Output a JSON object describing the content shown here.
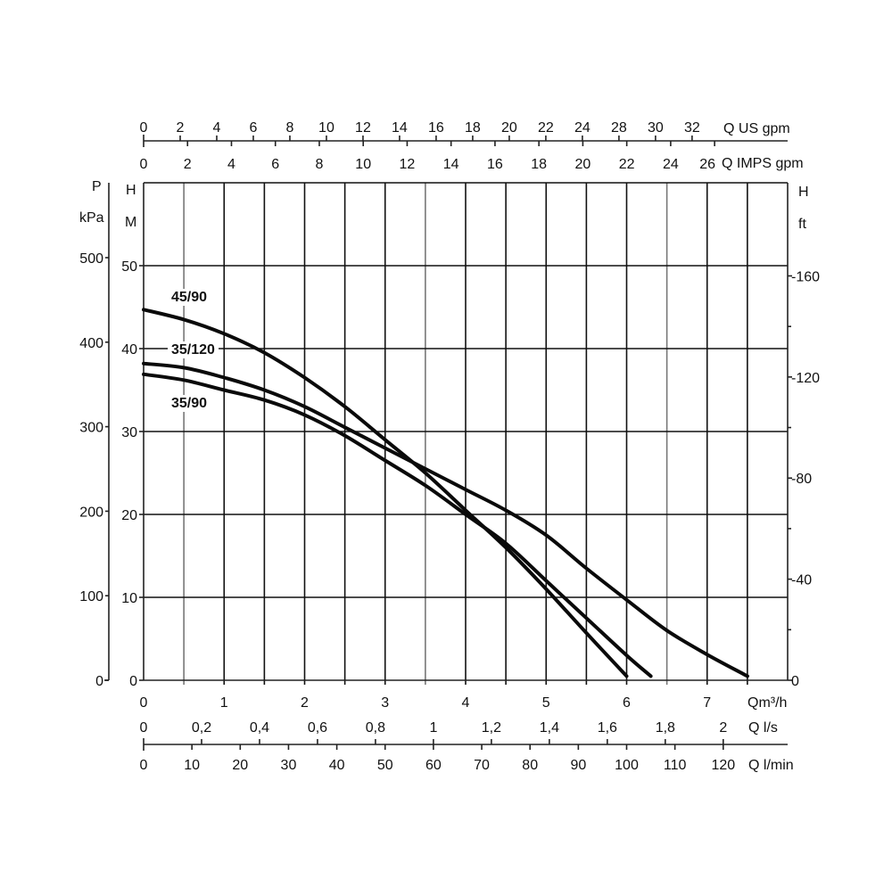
{
  "chart_data": {
    "type": "line",
    "title": "",
    "xlabel": "Qm³/h",
    "ylabel": "H M",
    "xlim": [
      0,
      8
    ],
    "ylim": [
      0,
      60
    ],
    "grid": true,
    "legend": "inline labels",
    "x_ticks": [
      0,
      1,
      2,
      3,
      4,
      5,
      6,
      7
    ],
    "y_ticks": [
      0,
      10,
      20,
      30,
      40,
      50
    ],
    "series": [
      {
        "name": "45/90",
        "x": [
          0,
          0.5,
          1,
          1.5,
          2,
          2.5,
          3,
          3.5,
          4,
          4.5,
          5,
          5.5,
          6
        ],
        "y": [
          44.7,
          43.5,
          41.8,
          39.5,
          36.5,
          33,
          29,
          25,
          20.5,
          16,
          11,
          5.7,
          0.5
        ]
      },
      {
        "name": "35/120",
        "x": [
          0,
          0.5,
          1,
          1.5,
          2,
          2.5,
          3,
          3.5,
          4,
          4.5,
          5,
          5.5,
          6,
          6.5,
          7,
          7.5
        ],
        "y": [
          38.2,
          37.7,
          36.5,
          35,
          33,
          30.5,
          28,
          25.5,
          23,
          20.5,
          17.5,
          13.5,
          9.7,
          6,
          3.1,
          0.5
        ]
      },
      {
        "name": "35/90",
        "x": [
          0,
          0.5,
          1,
          1.5,
          2,
          2.5,
          3,
          3.5,
          4,
          4.5,
          5,
          5.5,
          6,
          6.3
        ],
        "y": [
          36.9,
          36.2,
          35,
          33.8,
          32,
          29.5,
          26.5,
          23.5,
          20,
          16.5,
          12,
          7.5,
          3,
          0.5
        ]
      }
    ],
    "secondary_axes": {
      "left_pressure": {
        "title": "P",
        "unit": "kPa",
        "ticks": [
          0,
          100,
          200,
          300,
          400,
          500
        ]
      },
      "left_head": {
        "title": "H",
        "unit": "M",
        "ticks": [
          0,
          10,
          20,
          30,
          40,
          50
        ]
      },
      "right_head": {
        "title": "H",
        "unit": "ft",
        "ticks": [
          0,
          40,
          80,
          120,
          160
        ]
      },
      "top_us_gpm": {
        "unit": "Q US gpm",
        "ticks": [
          "0",
          "2",
          "4",
          "6",
          "8",
          "10",
          "12",
          "14",
          "16",
          "18",
          "20",
          "22",
          "24",
          "28",
          "30",
          "32"
        ]
      },
      "top_imps_gpm": {
        "unit": "Q IMPS gpm",
        "ticks": [
          "0",
          "2",
          "4",
          "6",
          "8",
          "10",
          "12",
          "14",
          "16",
          "18",
          "20",
          "22",
          "24",
          "26"
        ]
      },
      "bottom_m3h": {
        "unit": "Qm³/h",
        "ticks": [
          "0",
          "1",
          "2",
          "3",
          "4",
          "5",
          "6",
          "7"
        ]
      },
      "bottom_ls": {
        "unit": "Q l/s",
        "ticks": [
          "0",
          "0,2",
          "0,4",
          "0,6",
          "0,8",
          "1",
          "1,2",
          "1,4",
          "1,6",
          "1,8",
          "2"
        ]
      },
      "bottom_lmin": {
        "unit": "Q l/min",
        "ticks": [
          "0",
          "10",
          "20",
          "30",
          "40",
          "50",
          "60",
          "70",
          "80",
          "90",
          "100",
          "110",
          "120"
        ]
      }
    }
  },
  "labels": {
    "p_title": "P",
    "p_unit": "kPa",
    "h_left_title": "H",
    "h_left_unit": "M",
    "h_right_title": "H",
    "h_right_unit": "ft",
    "us_gpm_unit": "Q US gpm",
    "imps_gpm_unit": "Q IMPS gpm",
    "m3h_unit": "Qm³/h",
    "ls_unit": "Q l/s",
    "lmin_unit": "Q l/min",
    "curve_45_90": "45/90",
    "curve_35_120": "35/120",
    "curve_35_90": "35/90"
  }
}
